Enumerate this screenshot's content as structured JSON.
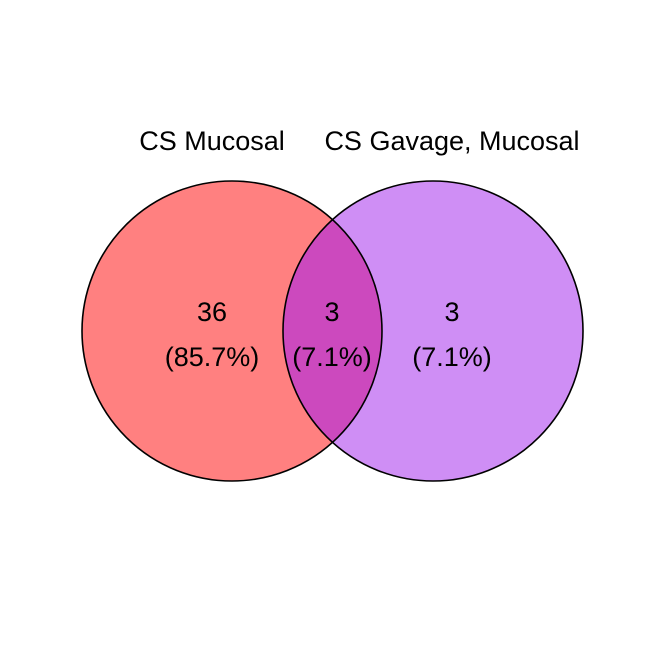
{
  "venn": {
    "sets": [
      {
        "label": "CS Mucosal",
        "color": "#ff8080"
      },
      {
        "label": "CS Gavage, Mucosal",
        "color": "#cf8ef5"
      }
    ],
    "overlap_color": "#cc49be",
    "outline_color": "#000000",
    "regions": [
      {
        "id": "only-a",
        "count": "36",
        "percent": "(85.7%)"
      },
      {
        "id": "both",
        "count": "3",
        "percent": "(7.1%)"
      },
      {
        "id": "only-b",
        "count": "3",
        "percent": "(7.1%)"
      }
    ]
  }
}
